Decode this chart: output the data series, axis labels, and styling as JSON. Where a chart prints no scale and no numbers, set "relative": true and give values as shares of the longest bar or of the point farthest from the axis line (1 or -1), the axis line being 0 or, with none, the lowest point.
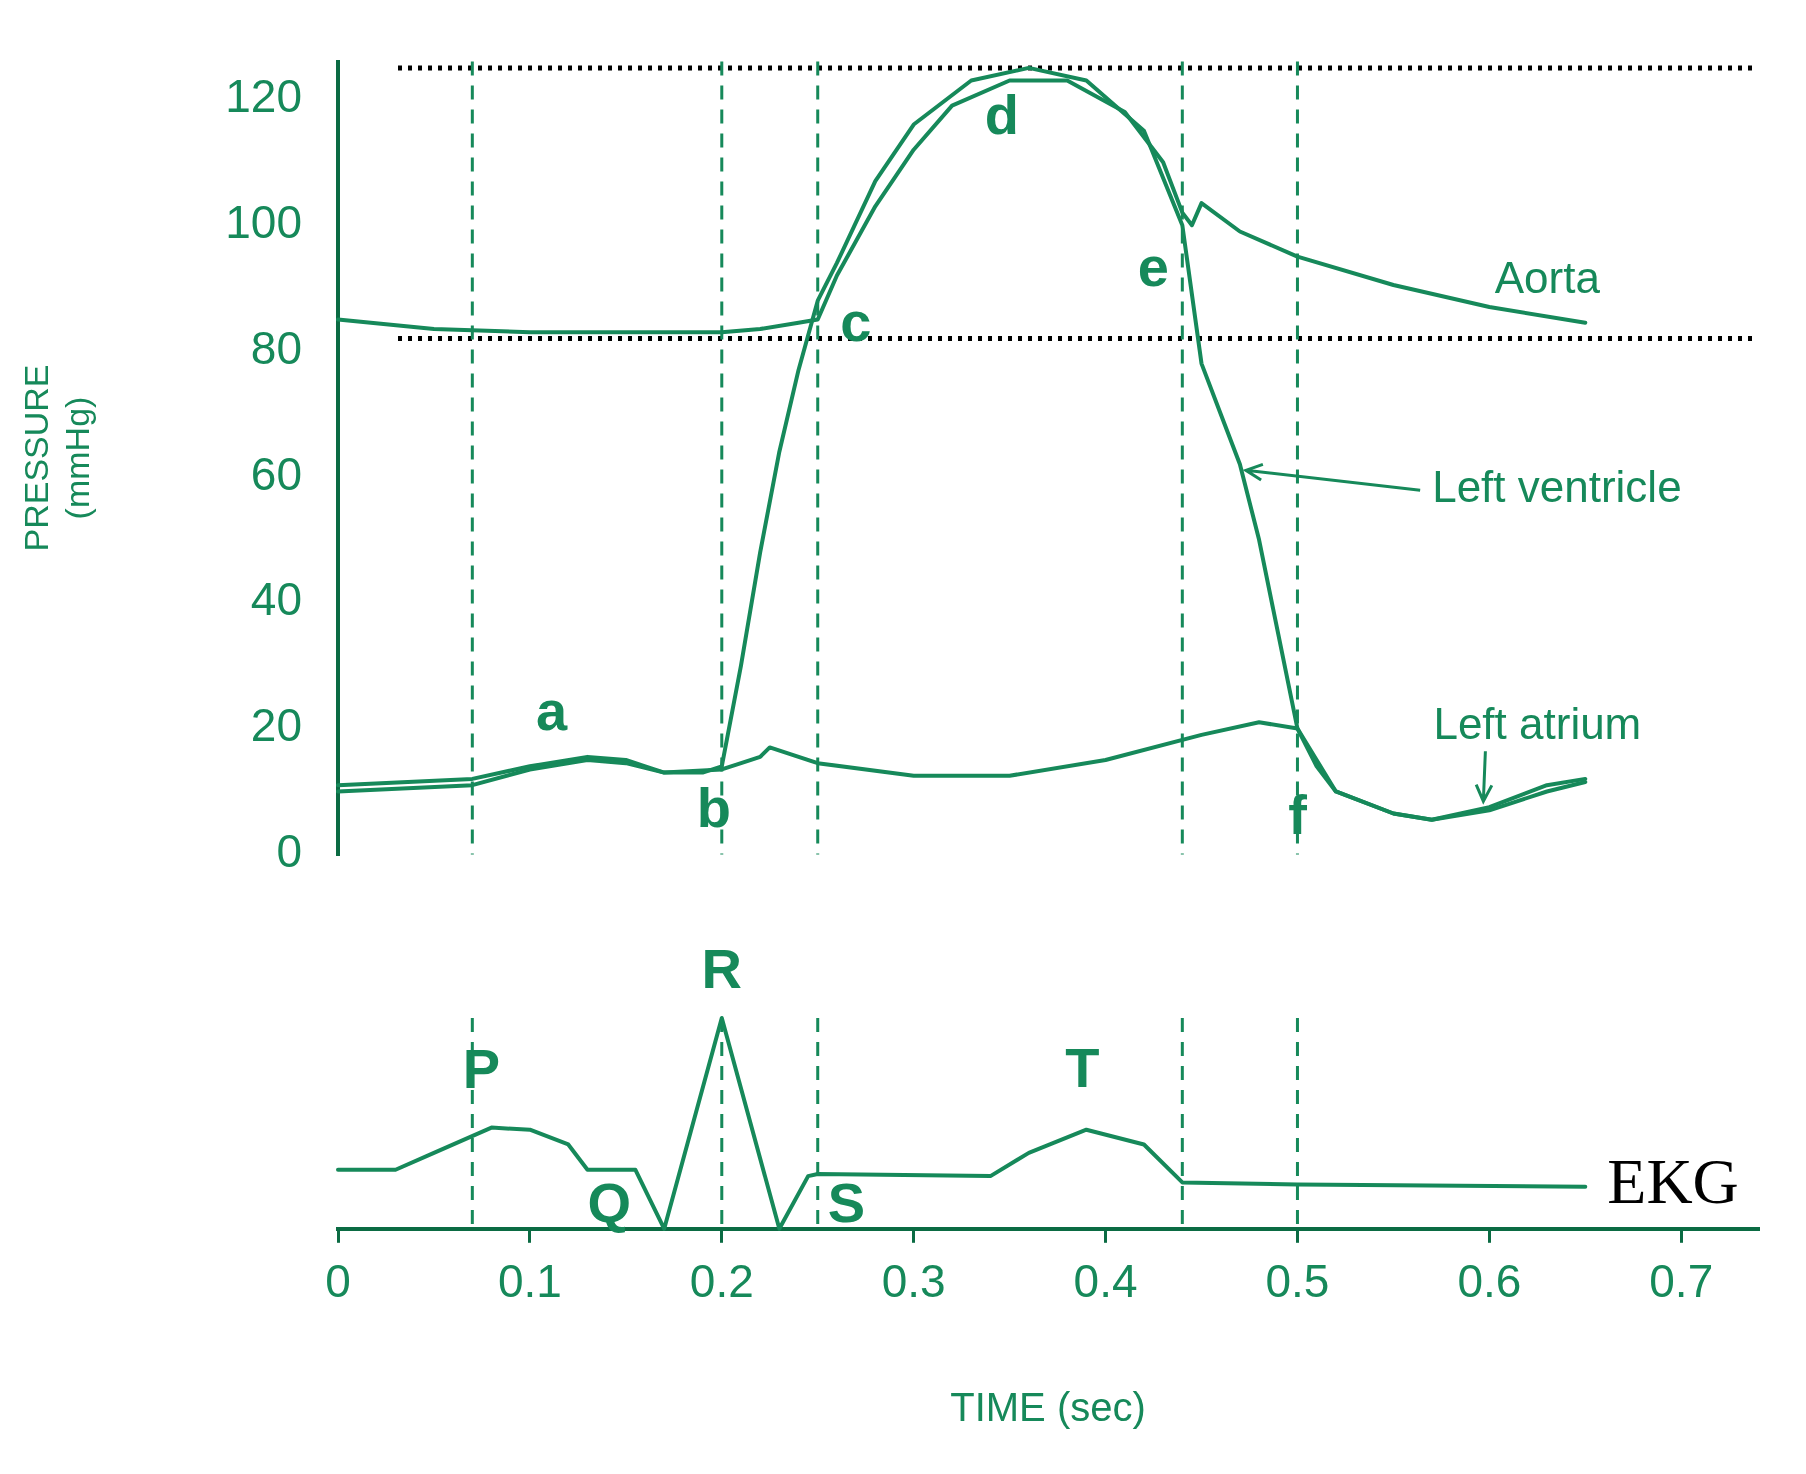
{
  "chart_data": [
    {
      "type": "line",
      "ylabel": "PRESSURE (mmHg)",
      "xlim": [
        0,
        0.74
      ],
      "ylim": [
        0,
        126
      ],
      "yticks": [
        0,
        20,
        40,
        60,
        80,
        100,
        120
      ],
      "tick_labels": "y",
      "grid": false,
      "legend": false,
      "marker": "none",
      "line_style": "solid",
      "series": [
        {
          "color": "#16895a",
          "x": [
            0,
            0.05,
            0.1,
            0.15,
            0.2,
            0.22,
            0.24,
            0.25,
            0.26,
            0.28,
            0.3,
            0.32,
            0.35,
            0.38,
            0.41,
            0.43,
            0.44,
            0.445,
            0.45,
            0.47,
            0.5,
            0.55,
            0.6,
            0.65
          ],
          "values": [
            85,
            83.5,
            83,
            83,
            83,
            83.5,
            84.5,
            85,
            92,
            103,
            112,
            119,
            123,
            123,
            118,
            110,
            102,
            100,
            103.5,
            99,
            95,
            90.5,
            87,
            84.5
          ]
        },
        {
          "color": "#16895a",
          "x": [
            0,
            0.07,
            0.1,
            0.13,
            0.15,
            0.17,
            0.19,
            0.2,
            0.21,
            0.22,
            0.23,
            0.24,
            0.25,
            0.26,
            0.28,
            0.3,
            0.33,
            0.36,
            0.39,
            0.42,
            0.44,
            0.45,
            0.46,
            0.47,
            0.48,
            0.49,
            0.5,
            0.51,
            0.52,
            0.55,
            0.57,
            0.6,
            0.63,
            0.65
          ],
          "values": [
            10,
            11,
            13.5,
            15,
            14.5,
            13,
            13,
            14,
            30,
            48,
            64,
            77,
            88,
            94,
            107,
            116,
            123,
            125,
            123,
            115,
            100,
            78,
            70,
            62,
            50,
            35,
            20,
            14,
            10,
            6.5,
            5.5,
            7,
            10,
            11.5
          ]
        },
        {
          "color": "#16895a",
          "x": [
            0,
            0.07,
            0.1,
            0.13,
            0.15,
            0.17,
            0.2,
            0.22,
            0.225,
            0.25,
            0.3,
            0.35,
            0.4,
            0.45,
            0.48,
            0.5,
            0.51,
            0.52,
            0.55,
            0.57,
            0.6,
            0.63,
            0.65
          ],
          "values": [
            11,
            12,
            14,
            15.5,
            15,
            13,
            13.5,
            15.5,
            17,
            14.5,
            12.5,
            12.5,
            15,
            19,
            21,
            20,
            15,
            10,
            6.5,
            5.5,
            7.5,
            11,
            12
          ]
        }
      ],
      "ref_lines": [
        {
          "axis": "y",
          "value": 125,
          "color": "#000000",
          "line_style": "dotted"
        },
        {
          "axis": "y",
          "value": 82,
          "color": "#000000",
          "line_style": "dotted"
        },
        {
          "axis": "x",
          "value": 0.07,
          "color": "#16895a",
          "line_style": "dashed"
        },
        {
          "axis": "x",
          "value": 0.2,
          "color": "#16895a",
          "line_style": "dashed"
        },
        {
          "axis": "x",
          "value": 0.25,
          "color": "#16895a",
          "line_style": "dashed"
        },
        {
          "axis": "x",
          "value": 0.44,
          "color": "#16895a",
          "line_style": "dashed"
        },
        {
          "axis": "x",
          "value": 0.5,
          "color": "#16895a",
          "line_style": "dashed"
        }
      ],
      "annotations": [
        {
          "text": "a",
          "x": 0.13,
          "y": 15
        },
        {
          "text": "b",
          "x": 0.2,
          "y": 14
        },
        {
          "text": "c",
          "x": 0.25,
          "y": 85
        },
        {
          "text": "d",
          "x": 0.36,
          "y": 125
        },
        {
          "text": "e",
          "x": 0.44,
          "y": 100
        },
        {
          "text": "f",
          "x": 0.5,
          "y": 20
        },
        {
          "text": "Aorta",
          "x": 0.6,
          "y": 87
        },
        {
          "text": "Left ventricle",
          "x": 0.47,
          "y": 62
        },
        {
          "text": "Left atrium",
          "x": 0.6,
          "y": 7.5
        }
      ]
    },
    {
      "type": "line",
      "xlabel": "TIME (sec)",
      "relative": true,
      "xlim": [
        0,
        0.74
      ],
      "xticks": [
        0,
        0.1,
        0.2,
        0.3,
        0.4,
        0.5,
        0.6,
        0.7
      ],
      "tick_labels": "x",
      "grid": false,
      "legend": false,
      "marker": "none",
      "line_style": "solid",
      "series": [
        {
          "name": "EKG",
          "color": "#16895a",
          "x": [
            0,
            0.03,
            0.05,
            0.08,
            0.1,
            0.12,
            0.13,
            0.155,
            0.17,
            0.2,
            0.23,
            0.245,
            0.25,
            0.34,
            0.36,
            0.39,
            0.42,
            0.44,
            0.5,
            0.65
          ],
          "values": [
            0.28,
            0.28,
            0.36,
            0.48,
            0.47,
            0.4,
            0.28,
            0.28,
            0,
            1,
            0,
            0.25,
            0.26,
            0.25,
            0.36,
            0.47,
            0.4,
            0.22,
            0.21,
            0.2
          ]
        }
      ],
      "ref_lines": [
        {
          "axis": "x",
          "value": 0.07,
          "color": "#16895a",
          "line_style": "dashed"
        },
        {
          "axis": "x",
          "value": 0.2,
          "color": "#16895a",
          "line_style": "dashed"
        },
        {
          "axis": "x",
          "value": 0.25,
          "color": "#16895a",
          "line_style": "dashed"
        },
        {
          "axis": "x",
          "value": 0.44,
          "color": "#16895a",
          "line_style": "dashed"
        },
        {
          "axis": "x",
          "value": 0.5,
          "color": "#16895a",
          "line_style": "dashed"
        }
      ],
      "annotations": [
        {
          "text": "P",
          "x": 0.08,
          "y": 0.48
        },
        {
          "text": "Q",
          "x": 0.17,
          "y": 0
        },
        {
          "text": "R",
          "x": 0.2,
          "y": 1
        },
        {
          "text": "S",
          "x": 0.23,
          "y": 0
        },
        {
          "text": "T",
          "x": 0.39,
          "y": 0.47
        }
      ]
    }
  ]
}
